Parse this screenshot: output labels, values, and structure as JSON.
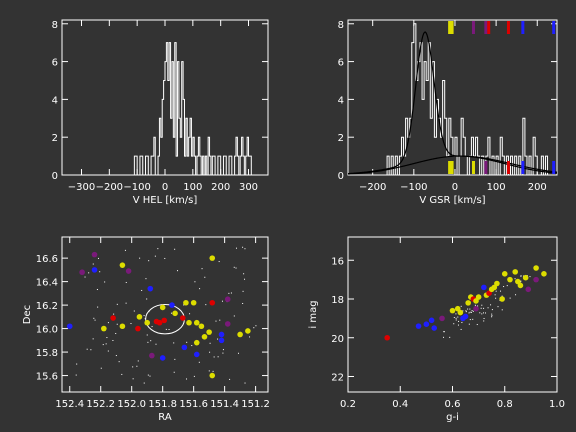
{
  "colors": {
    "bg": "#333333",
    "fg": "#ffffff",
    "red": "#dd0000",
    "blue": "#1f1fff",
    "yellow": "#dddd00",
    "purple": "#7a1a7a"
  },
  "chart_data": [
    {
      "type": "bar",
      "style": "step-histogram",
      "xlabel": "V HEL [km/s]",
      "ylabel": "",
      "xlim": [
        -370,
        370
      ],
      "ylim": [
        0,
        8.2
      ],
      "xticks": [
        -300,
        -200,
        -100,
        0,
        100,
        200,
        300
      ],
      "yticks": [
        0,
        2,
        4,
        6,
        8
      ],
      "bins": [
        [
          -115,
          -110,
          0
        ],
        [
          -110,
          -100,
          1
        ],
        [
          -100,
          -90,
          0
        ],
        [
          -90,
          -80,
          1
        ],
        [
          -80,
          -70,
          0
        ],
        [
          -70,
          -60,
          1
        ],
        [
          -60,
          -50,
          0
        ],
        [
          -50,
          -40,
          1
        ],
        [
          -40,
          -35,
          2
        ],
        [
          -35,
          -25,
          0
        ],
        [
          -25,
          -20,
          1
        ],
        [
          -20,
          -15,
          3
        ],
        [
          -15,
          -10,
          2
        ],
        [
          -10,
          -5,
          4
        ],
        [
          -5,
          0,
          5
        ],
        [
          0,
          5,
          6
        ],
        [
          5,
          10,
          7
        ],
        [
          10,
          15,
          5
        ],
        [
          15,
          20,
          7
        ],
        [
          20,
          25,
          3
        ],
        [
          25,
          30,
          6
        ],
        [
          30,
          35,
          2
        ],
        [
          35,
          40,
          7
        ],
        [
          40,
          45,
          1
        ],
        [
          45,
          50,
          6
        ],
        [
          50,
          55,
          3
        ],
        [
          55,
          60,
          2
        ],
        [
          60,
          65,
          6
        ],
        [
          65,
          70,
          4
        ],
        [
          70,
          75,
          1
        ],
        [
          75,
          80,
          3
        ],
        [
          80,
          85,
          1
        ],
        [
          85,
          90,
          2
        ],
        [
          90,
          95,
          3
        ],
        [
          95,
          100,
          1
        ],
        [
          100,
          105,
          2
        ],
        [
          105,
          110,
          1
        ],
        [
          110,
          115,
          0
        ],
        [
          115,
          120,
          1
        ],
        [
          120,
          125,
          2
        ],
        [
          125,
          130,
          1
        ],
        [
          130,
          135,
          0
        ],
        [
          135,
          140,
          1
        ],
        [
          140,
          145,
          0
        ],
        [
          145,
          150,
          1
        ],
        [
          150,
          155,
          0
        ],
        [
          155,
          160,
          2
        ],
        [
          160,
          165,
          1
        ],
        [
          165,
          170,
          0
        ],
        [
          170,
          180,
          1
        ],
        [
          180,
          190,
          0
        ],
        [
          190,
          200,
          1
        ],
        [
          200,
          210,
          0
        ],
        [
          210,
          220,
          1
        ],
        [
          220,
          230,
          0
        ],
        [
          230,
          240,
          1
        ],
        [
          240,
          250,
          0
        ],
        [
          250,
          255,
          1
        ],
        [
          255,
          260,
          2
        ],
        [
          260,
          265,
          1
        ],
        [
          265,
          270,
          0
        ],
        [
          270,
          275,
          1
        ],
        [
          275,
          280,
          2
        ],
        [
          280,
          285,
          1
        ],
        [
          285,
          290,
          0
        ],
        [
          290,
          295,
          1
        ],
        [
          295,
          300,
          2
        ],
        [
          300,
          310,
          1
        ]
      ]
    },
    {
      "type": "bar",
      "style": "step-histogram-with-models",
      "xlabel": "V GSR [km/s]",
      "ylabel": "",
      "xlim": [
        -260,
        248
      ],
      "ylim": [
        0,
        8.2
      ],
      "xticks": [
        -200,
        -100,
        0,
        100,
        200
      ],
      "yticks": [
        0,
        2,
        4,
        6,
        8
      ],
      "bins": [
        [
          -170,
          -165,
          0
        ],
        [
          -165,
          -160,
          1
        ],
        [
          -160,
          -155,
          0
        ],
        [
          -155,
          -150,
          1
        ],
        [
          -150,
          -145,
          0
        ],
        [
          -145,
          -140,
          1
        ],
        [
          -140,
          -135,
          0
        ],
        [
          -135,
          -130,
          1
        ],
        [
          -130,
          -125,
          2
        ],
        [
          -125,
          -120,
          1
        ],
        [
          -120,
          -115,
          3
        ],
        [
          -115,
          -110,
          2
        ],
        [
          -110,
          -105,
          3
        ],
        [
          -105,
          -100,
          7
        ],
        [
          -100,
          -95,
          8
        ],
        [
          -95,
          -90,
          5
        ],
        [
          -90,
          -85,
          6
        ],
        [
          -85,
          -80,
          7
        ],
        [
          -80,
          -75,
          4
        ],
        [
          -75,
          -70,
          6
        ],
        [
          -70,
          -65,
          5
        ],
        [
          -65,
          -60,
          7
        ],
        [
          -60,
          -55,
          3
        ],
        [
          -55,
          -50,
          6
        ],
        [
          -50,
          -45,
          2
        ],
        [
          -45,
          -40,
          4
        ],
        [
          -40,
          -35,
          3
        ],
        [
          -35,
          -30,
          2
        ],
        [
          -30,
          -25,
          5
        ],
        [
          -25,
          -20,
          3
        ],
        [
          -20,
          -15,
          1
        ],
        [
          -15,
          -10,
          3
        ],
        [
          -10,
          -5,
          2
        ],
        [
          -5,
          0,
          1
        ],
        [
          0,
          5,
          2
        ],
        [
          5,
          10,
          0
        ],
        [
          10,
          15,
          1
        ],
        [
          15,
          20,
          3
        ],
        [
          20,
          25,
          2
        ],
        [
          25,
          30,
          1
        ],
        [
          30,
          35,
          0
        ],
        [
          35,
          40,
          1
        ],
        [
          40,
          45,
          2
        ],
        [
          45,
          50,
          1
        ],
        [
          50,
          55,
          2
        ],
        [
          55,
          60,
          1
        ],
        [
          60,
          65,
          0
        ],
        [
          65,
          70,
          1
        ],
        [
          70,
          75,
          0
        ],
        [
          75,
          80,
          1
        ],
        [
          80,
          85,
          2
        ],
        [
          85,
          90,
          0
        ],
        [
          90,
          95,
          1
        ],
        [
          95,
          100,
          0
        ],
        [
          100,
          105,
          1
        ],
        [
          105,
          110,
          0
        ],
        [
          110,
          115,
          2
        ],
        [
          115,
          120,
          1
        ],
        [
          120,
          125,
          0
        ],
        [
          125,
          130,
          1
        ],
        [
          130,
          135,
          0
        ],
        [
          135,
          140,
          1
        ],
        [
          140,
          145,
          0
        ],
        [
          145,
          150,
          1
        ],
        [
          150,
          155,
          0
        ],
        [
          155,
          160,
          1
        ],
        [
          160,
          165,
          0
        ],
        [
          165,
          170,
          3
        ],
        [
          170,
          175,
          1
        ],
        [
          175,
          180,
          0
        ],
        [
          180,
          185,
          1
        ],
        [
          185,
          190,
          0
        ],
        [
          190,
          195,
          2
        ],
        [
          195,
          200,
          1
        ],
        [
          200,
          210,
          0
        ],
        [
          210,
          215,
          1
        ],
        [
          215,
          220,
          0
        ],
        [
          220,
          225,
          1
        ]
      ],
      "model_peak": {
        "center": -73,
        "sigma": 22,
        "amplitude": 6.8,
        "background_amplitude": 1.0,
        "background_center": 15,
        "background_sigma": 120
      },
      "model_background": {
        "center": 10,
        "sigma": 110,
        "amplitude": 1.0
      },
      "top_markers": [
        {
          "v": -13,
          "color": "yellow"
        },
        {
          "v": -7,
          "color": "yellow"
        },
        {
          "v": 45,
          "color": "purple"
        },
        {
          "v": 75,
          "color": "purple"
        },
        {
          "v": 82,
          "color": "red"
        },
        {
          "v": 130,
          "color": "red"
        },
        {
          "v": 165,
          "color": "blue"
        },
        {
          "v": 240,
          "color": "blue"
        }
      ],
      "bottom_markers": [
        {
          "v": -13,
          "color": "yellow"
        },
        {
          "v": -7,
          "color": "yellow"
        },
        {
          "v": 45,
          "color": "yellow"
        },
        {
          "v": 75,
          "color": "purple"
        },
        {
          "v": 130,
          "color": "red"
        },
        {
          "v": 165,
          "color": "blue"
        },
        {
          "v": 240,
          "color": "blue"
        }
      ]
    },
    {
      "type": "scatter",
      "xlabel": "RA",
      "ylabel": "Dec",
      "xlim": [
        152.45,
        151.12
      ],
      "ylim": [
        15.46,
        16.78
      ],
      "xticks": [
        152.4,
        152.2,
        152.0,
        151.8,
        151.6,
        151.4,
        151.2
      ],
      "yticks": [
        15.6,
        15.8,
        16.0,
        16.2,
        16.4,
        16.6
      ],
      "ellipse": {
        "ra": 151.785,
        "dec": 16.08,
        "semi_ra": 0.125,
        "semi_dec": 0.125
      },
      "points": [
        {
          "ra": 152.24,
          "dec": 16.63,
          "color": "purple"
        },
        {
          "ra": 152.32,
          "dec": 16.48,
          "color": "purple"
        },
        {
          "ra": 152.06,
          "dec": 16.54,
          "color": "yellow"
        },
        {
          "ra": 152.02,
          "dec": 16.49,
          "color": "purple"
        },
        {
          "ra": 152.24,
          "dec": 16.5,
          "color": "blue"
        },
        {
          "ra": 151.88,
          "dec": 16.34,
          "color": "blue"
        },
        {
          "ra": 151.8,
          "dec": 16.18,
          "color": "yellow"
        },
        {
          "ra": 151.74,
          "dec": 16.2,
          "color": "blue"
        },
        {
          "ra": 151.65,
          "dec": 16.22,
          "color": "yellow"
        },
        {
          "ra": 151.6,
          "dec": 16.22,
          "color": "yellow"
        },
        {
          "ra": 151.48,
          "dec": 16.22,
          "color": "red"
        },
        {
          "ra": 151.38,
          "dec": 16.25,
          "color": "purple"
        },
        {
          "ra": 152.12,
          "dec": 16.09,
          "color": "red"
        },
        {
          "ra": 151.95,
          "dec": 16.1,
          "color": "yellow"
        },
        {
          "ra": 151.9,
          "dec": 16.05,
          "color": "yellow"
        },
        {
          "ra": 151.84,
          "dec": 16.06,
          "color": "red"
        },
        {
          "ra": 151.82,
          "dec": 16.05,
          "color": "red"
        },
        {
          "ra": 151.79,
          "dec": 16.07,
          "color": "red"
        },
        {
          "ra": 151.72,
          "dec": 16.13,
          "color": "yellow"
        },
        {
          "ra": 151.67,
          "dec": 16.09,
          "color": "red"
        },
        {
          "ra": 151.63,
          "dec": 16.05,
          "color": "yellow"
        },
        {
          "ra": 151.58,
          "dec": 16.05,
          "color": "yellow"
        },
        {
          "ra": 152.4,
          "dec": 16.02,
          "color": "blue"
        },
        {
          "ra": 152.18,
          "dec": 16.0,
          "color": "yellow"
        },
        {
          "ra": 152.06,
          "dec": 16.02,
          "color": "yellow"
        },
        {
          "ra": 151.96,
          "dec": 16.0,
          "color": "red"
        },
        {
          "ra": 151.55,
          "dec": 16.02,
          "color": "yellow"
        },
        {
          "ra": 151.53,
          "dec": 15.93,
          "color": "yellow"
        },
        {
          "ra": 151.5,
          "dec": 15.97,
          "color": "yellow"
        },
        {
          "ra": 151.42,
          "dec": 15.95,
          "color": "blue"
        },
        {
          "ra": 151.42,
          "dec": 15.9,
          "color": "blue"
        },
        {
          "ra": 151.3,
          "dec": 15.95,
          "color": "yellow"
        },
        {
          "ra": 151.25,
          "dec": 15.98,
          "color": "yellow"
        },
        {
          "ra": 151.58,
          "dec": 15.88,
          "color": "yellow"
        },
        {
          "ra": 151.66,
          "dec": 15.84,
          "color": "blue"
        },
        {
          "ra": 151.8,
          "dec": 15.75,
          "color": "blue"
        },
        {
          "ra": 151.87,
          "dec": 15.77,
          "color": "purple"
        },
        {
          "ra": 151.58,
          "dec": 15.78,
          "color": "blue"
        },
        {
          "ra": 151.48,
          "dec": 15.6,
          "color": "yellow"
        },
        {
          "ra": 151.38,
          "dec": 16.04,
          "color": "purple"
        },
        {
          "ra": 151.48,
          "dec": 16.6,
          "color": "yellow"
        }
      ]
    },
    {
      "type": "scatter",
      "xlabel": "g-i",
      "ylabel": "i mag",
      "xlim": [
        0.2,
        1.0
      ],
      "ylim": [
        22.8,
        14.8
      ],
      "xticks": [
        0.2,
        0.4,
        0.6,
        0.8,
        1.0
      ],
      "yticks": [
        16,
        18,
        20,
        22
      ],
      "points": [
        {
          "gi": 0.35,
          "i": 20.0,
          "color": "red"
        },
        {
          "gi": 0.47,
          "i": 19.4,
          "color": "blue"
        },
        {
          "gi": 0.5,
          "i": 19.3,
          "color": "blue"
        },
        {
          "gi": 0.52,
          "i": 19.1,
          "color": "blue"
        },
        {
          "gi": 0.53,
          "i": 19.5,
          "color": "blue"
        },
        {
          "gi": 0.56,
          "i": 19.0,
          "color": "purple"
        },
        {
          "gi": 0.6,
          "i": 18.6,
          "color": "yellow"
        },
        {
          "gi": 0.62,
          "i": 18.5,
          "color": "yellow"
        },
        {
          "gi": 0.63,
          "i": 18.7,
          "color": "yellow"
        },
        {
          "gi": 0.64,
          "i": 19.0,
          "color": "blue"
        },
        {
          "gi": 0.65,
          "i": 18.9,
          "color": "blue"
        },
        {
          "gi": 0.66,
          "i": 18.2,
          "color": "yellow"
        },
        {
          "gi": 0.67,
          "i": 17.9,
          "color": "yellow"
        },
        {
          "gi": 0.68,
          "i": 18.0,
          "color": "red"
        },
        {
          "gi": 0.69,
          "i": 18.1,
          "color": "yellow"
        },
        {
          "gi": 0.69,
          "i": 18.5,
          "color": "purple"
        },
        {
          "gi": 0.7,
          "i": 17.9,
          "color": "yellow"
        },
        {
          "gi": 0.72,
          "i": 17.4,
          "color": "blue"
        },
        {
          "gi": 0.73,
          "i": 17.8,
          "color": "yellow"
        },
        {
          "gi": 0.74,
          "i": 17.7,
          "color": "red"
        },
        {
          "gi": 0.75,
          "i": 17.5,
          "color": "yellow"
        },
        {
          "gi": 0.76,
          "i": 17.4,
          "color": "yellow"
        },
        {
          "gi": 0.77,
          "i": 17.2,
          "color": "yellow"
        },
        {
          "gi": 0.79,
          "i": 18.0,
          "color": "yellow"
        },
        {
          "gi": 0.8,
          "i": 16.7,
          "color": "yellow"
        },
        {
          "gi": 0.82,
          "i": 17.0,
          "color": "yellow"
        },
        {
          "gi": 0.84,
          "i": 16.6,
          "color": "yellow"
        },
        {
          "gi": 0.86,
          "i": 17.3,
          "color": "yellow"
        },
        {
          "gi": 0.88,
          "i": 16.9,
          "color": "yellow"
        },
        {
          "gi": 0.89,
          "i": 17.5,
          "color": "purple"
        },
        {
          "gi": 0.92,
          "i": 17.0,
          "color": "purple"
        },
        {
          "gi": 0.95,
          "i": 16.7,
          "color": "yellow"
        },
        {
          "gi": 0.92,
          "i": 16.4,
          "color": "yellow"
        },
        {
          "gi": 0.85,
          "i": 17.1,
          "color": "yellow"
        }
      ]
    }
  ]
}
